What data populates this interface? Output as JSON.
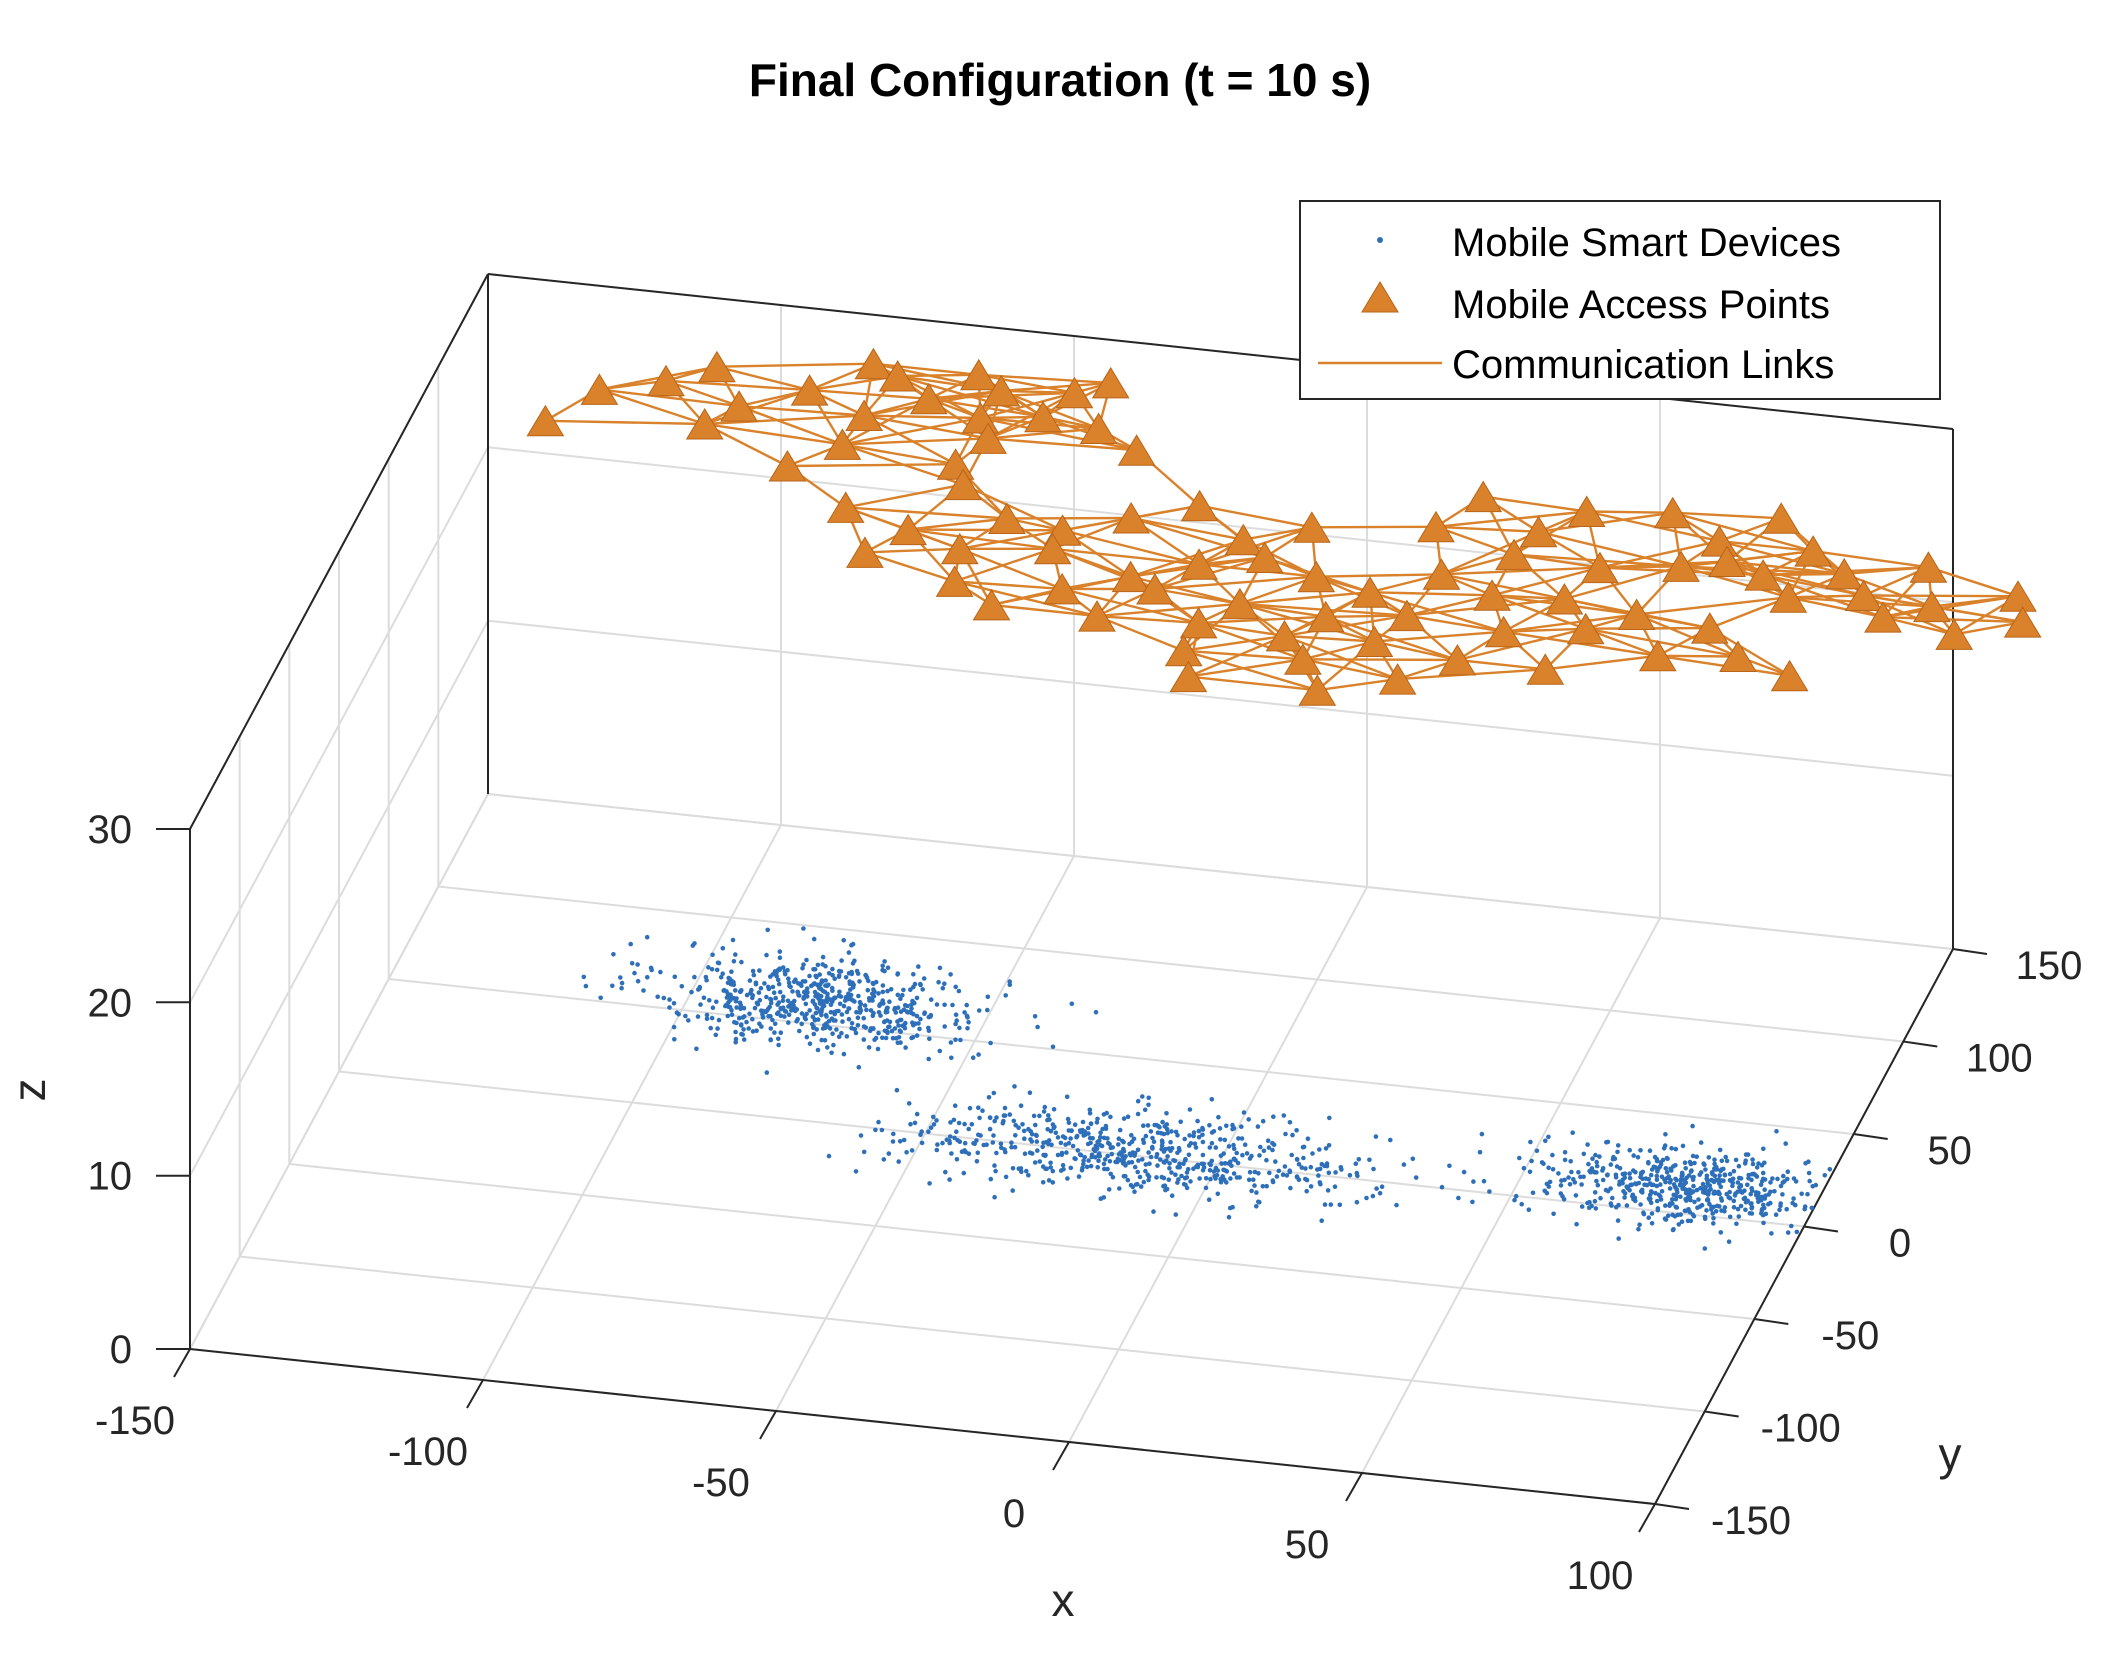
{
  "chart_data": {
    "type": "scatter3d",
    "title": "Final Configuration (t = 10 s)",
    "xlabel": "x",
    "ylabel": "y",
    "zlabel": "z",
    "xlim": [
      -150,
      100
    ],
    "ylim": [
      -150,
      150
    ],
    "zlim": [
      0,
      30
    ],
    "x_ticks": [
      "-150",
      "-100",
      "-50",
      "0",
      "50",
      "100"
    ],
    "y_ticks": [
      "-150",
      "-100",
      "-50",
      "0",
      "50",
      "100",
      "150"
    ],
    "z_ticks": [
      "0",
      "10",
      "20",
      "30"
    ],
    "grid": true,
    "legend_position": "top-right",
    "legend": [
      {
        "label": "Mobile Smart Devices",
        "marker": "dot",
        "color": "#2E6FBA"
      },
      {
        "label": "Mobile Access Points",
        "marker": "triangle",
        "color": "#D9822B"
      },
      {
        "label": "Communication Links",
        "marker": "line",
        "color": "#D9822B"
      }
    ],
    "series": [
      {
        "name": "Mobile Smart Devices",
        "z": 0,
        "clusters": [
          {
            "center": [
              -78,
              62
            ],
            "spread": [
              14,
              12
            ],
            "count": 620
          },
          {
            "center": [
              -14,
              2
            ],
            "spread": [
              20,
              11
            ],
            "count": 620
          },
          {
            "center": [
              78,
              14
            ],
            "spread": [
              14,
              10
            ],
            "count": 560
          }
        ]
      },
      {
        "name": "Mobile Access Points",
        "z": 30,
        "points": [
          [
            -80,
            125
          ],
          [
            -62,
            125
          ],
          [
            -40,
            128
          ],
          [
            -45,
            121
          ],
          [
            -75,
            120
          ],
          [
            -57,
            118
          ],
          [
            -105,
            115
          ],
          [
            -112,
            105
          ],
          [
            -88,
            108
          ],
          [
            -68,
            110
          ],
          [
            -58,
            103
          ],
          [
            -48,
            107
          ],
          [
            -38,
            104
          ],
          [
            -122,
            97
          ],
          [
            -98,
            96
          ],
          [
            -77,
            98
          ],
          [
            -55,
            93
          ],
          [
            -30,
            95
          ],
          [
            -102,
            85
          ],
          [
            -78,
            82
          ],
          [
            -58,
            78
          ],
          [
            -128,
            78
          ],
          [
            -85,
            68
          ],
          [
            -55,
            68
          ],
          [
            -72,
            50
          ],
          [
            -60,
            42
          ],
          [
            -45,
            53
          ],
          [
            -35,
            50
          ],
          [
            -25,
            60
          ],
          [
            -15,
            70
          ],
          [
            -5,
            55
          ],
          [
            5,
            65
          ],
          [
            -65,
            28
          ],
          [
            -50,
            35
          ],
          [
            -35,
            40
          ],
          [
            -20,
            30
          ],
          [
            -10,
            40
          ],
          [
            0,
            47
          ],
          [
            10,
            40
          ],
          [
            20,
            35
          ],
          [
            30,
            48
          ],
          [
            40,
            40
          ],
          [
            52,
            42
          ],
          [
            65,
            38
          ],
          [
            78,
            35
          ],
          [
            85,
            22
          ],
          [
            95,
            15
          ],
          [
            -48,
            18
          ],
          [
            -30,
            20
          ],
          [
            -15,
            25
          ],
          [
            0,
            22
          ],
          [
            15,
            20
          ],
          [
            28,
            25
          ],
          [
            45,
            22
          ],
          [
            58,
            28
          ],
          [
            72,
            18
          ],
          [
            -40,
            8
          ],
          [
            -22,
            8
          ],
          [
            -5,
            10
          ],
          [
            10,
            8
          ],
          [
            25,
            10
          ],
          [
            40,
            5
          ],
          [
            55,
            5
          ],
          [
            -5,
            -5
          ],
          [
            15,
            -3
          ],
          [
            32,
            -8
          ],
          [
            -2,
            -18
          ],
          [
            20,
            -18
          ],
          [
            30,
            90
          ],
          [
            48,
            88
          ],
          [
            62,
            92
          ],
          [
            72,
            80
          ],
          [
            80,
            95
          ],
          [
            88,
            80
          ],
          [
            75,
            70
          ],
          [
            68,
            65
          ],
          [
            82,
            65
          ],
          [
            95,
            70
          ],
          [
            108,
            78
          ],
          [
            100,
            60
          ],
          [
            112,
            58
          ],
          [
            125,
            68
          ],
          [
            105,
            50
          ],
          [
            128,
            55
          ],
          [
            88,
            55
          ],
          [
            118,
            45
          ],
          [
            55,
            60
          ],
          [
            40,
            62
          ],
          [
            42,
            75
          ],
          [
            25,
            72
          ]
        ]
      },
      {
        "name": "Communication Links",
        "rule": "connect access points closer than 30 units"
      }
    ]
  }
}
